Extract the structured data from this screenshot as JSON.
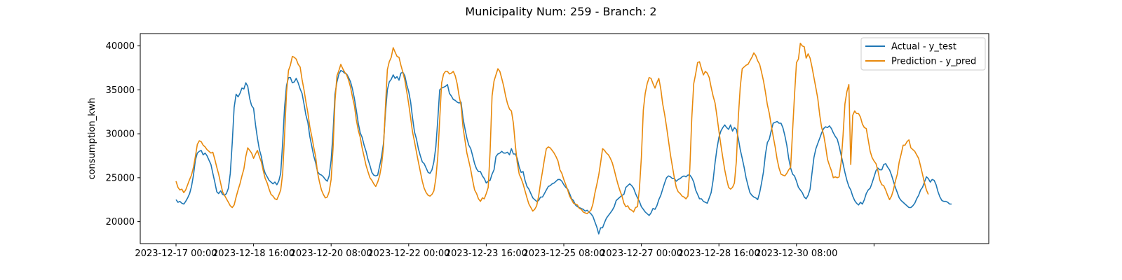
{
  "chart_data": {
    "type": "line",
    "title": "Municipality Num: 259 - Branch: 2",
    "xlabel": "",
    "ylabel": "consumption_kwh",
    "x_start": "2023-12-17 00:00",
    "x_end": "2023-12-31 23:00",
    "x_step": "1h",
    "xticks": [
      "2023-12-17 00:00",
      "2023-12-18 16:00",
      "2023-12-20 08:00",
      "2023-12-22 00:00",
      "2023-12-23 16:00",
      "2023-12-25 08:00",
      "2023-12-27 00:00",
      "2023-12-28 16:00",
      "2023-12-30 08:00",
      ""
    ],
    "yticks": [
      20000,
      25000,
      30000,
      35000,
      40000
    ],
    "ylim": [
      17500,
      41400
    ],
    "grid": false,
    "legend_position": "upper right",
    "series": [
      {
        "name": "Actual - y_test",
        "color": "#1f77b4",
        "values": [
          22500,
          22200,
          22300,
          22100,
          22000,
          22300,
          22700,
          23200,
          24000,
          25300,
          27000,
          27800,
          28000,
          28100,
          27600,
          27800,
          27500,
          27000,
          26500,
          25500,
          24500,
          23400,
          23200,
          23500,
          23100,
          23000,
          23200,
          23800,
          25500,
          29000,
          33000,
          34500,
          34200,
          34600,
          35200,
          35100,
          35800,
          35400,
          34000,
          33200,
          32900,
          31000,
          29500,
          28200,
          27400,
          26200,
          25500,
          25100,
          24700,
          24500,
          24300,
          24500,
          24200,
          24600,
          25500,
          29000,
          33000,
          35500,
          36400,
          36400,
          35800,
          35900,
          36300,
          35800,
          35100,
          34600,
          33400,
          32100,
          31300,
          29700,
          28600,
          27500,
          26700,
          25700,
          25400,
          25300,
          25100,
          24800,
          24600,
          25200,
          27000,
          30200,
          34500,
          35900,
          36800,
          37200,
          37100,
          36900,
          36800,
          36400,
          35900,
          35100,
          34000,
          32700,
          31200,
          30100,
          29600,
          28700,
          28000,
          27100,
          26400,
          25600,
          25300,
          25200,
          25300,
          26300,
          27400,
          28900,
          32300,
          35000,
          35900,
          36200,
          36700,
          36300,
          36500,
          36100,
          36900,
          37000,
          36600,
          35600,
          34800,
          33600,
          31800,
          30200,
          29400,
          28300,
          27500,
          26800,
          26600,
          26100,
          25600,
          25500,
          25900,
          26800,
          28500,
          31600,
          35000,
          35200,
          35300,
          35400,
          35600,
          34600,
          34300,
          33900,
          33800,
          33600,
          33500,
          33600,
          31800,
          30600,
          29500,
          28700,
          28300,
          27500,
          26600,
          26000,
          25700,
          25700,
          25200,
          24900,
          24400,
          24600,
          24700,
          25400,
          25900,
          27400,
          27700,
          27800,
          28000,
          27800,
          27800,
          27900,
          27600,
          28300,
          27700,
          27700,
          27200,
          26200,
          25600,
          25700,
          24700,
          24000,
          23700,
          23200,
          22700,
          22500,
          22300,
          22400,
          22800,
          22800,
          23200,
          23600,
          24000,
          24100,
          24300,
          24400,
          24600,
          24800,
          24800,
          24600,
          24200,
          23900,
          23700,
          23200,
          22600,
          22400,
          21900,
          21700,
          21600,
          21500,
          21400,
          21200,
          21300,
          21100,
          20900,
          20600,
          20000,
          19400,
          18600,
          19300,
          19300,
          19900,
          20400,
          20700,
          21000,
          21300,
          21700,
          22400,
          22600,
          22800,
          23000,
          23100,
          23900,
          24100,
          24300,
          24100,
          23800,
          23200,
          22700,
          22300,
          21700,
          21400,
          21100,
          20900,
          20700,
          21000,
          21500,
          21400,
          21800,
          22500,
          23000,
          23700,
          24400,
          25000,
          25200,
          25100,
          24900,
          24900,
          24600,
          24800,
          24900,
          25100,
          25200,
          25100,
          25300,
          25300,
          25000,
          24500,
          23600,
          23100,
          22600,
          22600,
          22300,
          22200,
          22100,
          22700,
          23300,
          24700,
          26700,
          28300,
          29600,
          30300,
          30700,
          31000,
          30700,
          30500,
          31000,
          30300,
          30700,
          30500,
          29500,
          28200,
          27200,
          26200,
          25000,
          24100,
          23300,
          23000,
          22800,
          22700,
          22500,
          23300,
          24400,
          25700,
          27700,
          29000,
          29400,
          30400,
          31200,
          31300,
          31400,
          31200,
          31200,
          30700,
          29800,
          28700,
          27200,
          26100,
          25400,
          25200,
          24600,
          23900,
          23600,
          23300,
          22800,
          22600,
          23000,
          23700,
          25500,
          27300,
          28300,
          28900,
          29500,
          30100,
          30600,
          30800,
          30700,
          30900,
          30600,
          30100,
          29700,
          29400,
          28600,
          27600,
          26600,
          25600,
          24700,
          24000,
          23600,
          22900,
          22400,
          22100,
          21900,
          22200,
          22000,
          22500,
          23200,
          23600,
          23800,
          24400,
          25100,
          25800,
          26100,
          25900,
          25900,
          26500,
          26600,
          26200,
          25900,
          25300,
          24600,
          23900,
          23300,
          22700,
          22400,
          22200,
          22000,
          21800,
          21600,
          21600,
          21800,
          22100,
          22600,
          23000,
          23600,
          23900,
          24500,
          25100,
          24900,
          24500,
          24800,
          24700,
          24200,
          23400,
          22800,
          22400,
          22300,
          22300,
          22200,
          22000,
          22000
        ]
      },
      {
        "name": "Prediction - y_pred",
        "color": "#e8890c",
        "values": [
          24600,
          23900,
          23600,
          23700,
          23300,
          23600,
          24200,
          24800,
          25300,
          26200,
          27400,
          28800,
          29200,
          29100,
          28700,
          28500,
          28200,
          28000,
          27800,
          27900,
          27100,
          26200,
          25400,
          24400,
          23400,
          23000,
          22600,
          22200,
          21800,
          21600,
          21900,
          22800,
          23600,
          24300,
          25200,
          26000,
          27400,
          28400,
          28100,
          27800,
          27200,
          27700,
          28100,
          27400,
          26800,
          25800,
          24900,
          24400,
          23700,
          23100,
          22900,
          22600,
          22500,
          23000,
          23600,
          25500,
          29800,
          34700,
          37200,
          37800,
          38800,
          38700,
          38500,
          37900,
          37600,
          36200,
          35000,
          33600,
          32400,
          30800,
          29700,
          28500,
          27400,
          25600,
          24500,
          23600,
          23100,
          22700,
          22800,
          23400,
          24800,
          28400,
          33700,
          36600,
          37200,
          37900,
          37400,
          37000,
          36700,
          36100,
          35300,
          34200,
          33200,
          31600,
          30400,
          29600,
          28400,
          27400,
          26400,
          25700,
          25000,
          24700,
          24300,
          24000,
          24500,
          25200,
          26400,
          28500,
          33000,
          37300,
          38200,
          38700,
          39800,
          39300,
          38800,
          38700,
          37800,
          37000,
          36100,
          34800,
          33400,
          31800,
          30200,
          29100,
          27900,
          26800,
          25700,
          24600,
          23800,
          23300,
          23000,
          22900,
          23100,
          23500,
          24900,
          27400,
          31600,
          35800,
          36800,
          37100,
          37100,
          36800,
          36900,
          37100,
          36600,
          35700,
          34300,
          33200,
          30800,
          29300,
          27800,
          26900,
          25900,
          24700,
          23600,
          23200,
          22600,
          22300,
          22700,
          22600,
          23200,
          23900,
          28000,
          34300,
          36000,
          36700,
          37400,
          37100,
          36300,
          35400,
          34300,
          33400,
          32800,
          32600,
          31200,
          28700,
          26700,
          25400,
          24900,
          24300,
          23500,
          22700,
          22000,
          21600,
          21200,
          21400,
          21800,
          22900,
          24400,
          25700,
          27100,
          28300,
          28500,
          28400,
          28100,
          27800,
          27400,
          26900,
          25900,
          25500,
          24800,
          24200,
          23600,
          22900,
          22500,
          22100,
          22000,
          21900,
          21500,
          21400,
          21100,
          21000,
          20900,
          21100,
          21300,
          22000,
          23200,
          24200,
          25300,
          26700,
          28300,
          28100,
          27800,
          27600,
          27200,
          26700,
          25900,
          25000,
          24200,
          23500,
          22900,
          22100,
          21700,
          21800,
          21400,
          21300,
          21100,
          21600,
          21700,
          23700,
          27300,
          32700,
          34600,
          35700,
          36400,
          36300,
          35700,
          35200,
          35800,
          36300,
          35100,
          33400,
          32200,
          30800,
          29200,
          27600,
          26300,
          25000,
          23900,
          23400,
          23200,
          22900,
          22800,
          22600,
          22900,
          26000,
          31800,
          35700,
          36800,
          38100,
          38200,
          37400,
          36700,
          37100,
          36900,
          36400,
          35300,
          34300,
          33500,
          32000,
          30300,
          28700,
          27300,
          25900,
          24800,
          23900,
          23700,
          23900,
          24400,
          26900,
          31800,
          35300,
          37400,
          37600,
          37800,
          37900,
          38300,
          38700,
          39200,
          38900,
          38300,
          37900,
          37000,
          36000,
          34700,
          33300,
          32300,
          30900,
          29700,
          28500,
          27100,
          26100,
          25400,
          25300,
          25200,
          25500,
          25900,
          26200,
          30400,
          34400,
          38100,
          38500,
          40300,
          40000,
          39900,
          38600,
          39100,
          38600,
          37600,
          36400,
          35200,
          34000,
          32100,
          30700,
          29900,
          28600,
          27100,
          26400,
          25800,
          25000,
          25100,
          25000,
          25100,
          26700,
          29800,
          33400,
          34800,
          35600,
          26500,
          32100,
          32600,
          32300,
          32300,
          31900,
          31100,
          30700,
          30600,
          29300,
          28000,
          27300,
          26900,
          26600,
          25800,
          24700,
          24200,
          24100,
          23600,
          23000,
          22500,
          22900,
          23600,
          24600,
          25400,
          26800,
          27700,
          28700,
          28700,
          29100,
          29300,
          28400,
          28200,
          28000,
          27600,
          27200,
          26300,
          25400,
          24400,
          23600,
          23100
        ]
      }
    ]
  }
}
